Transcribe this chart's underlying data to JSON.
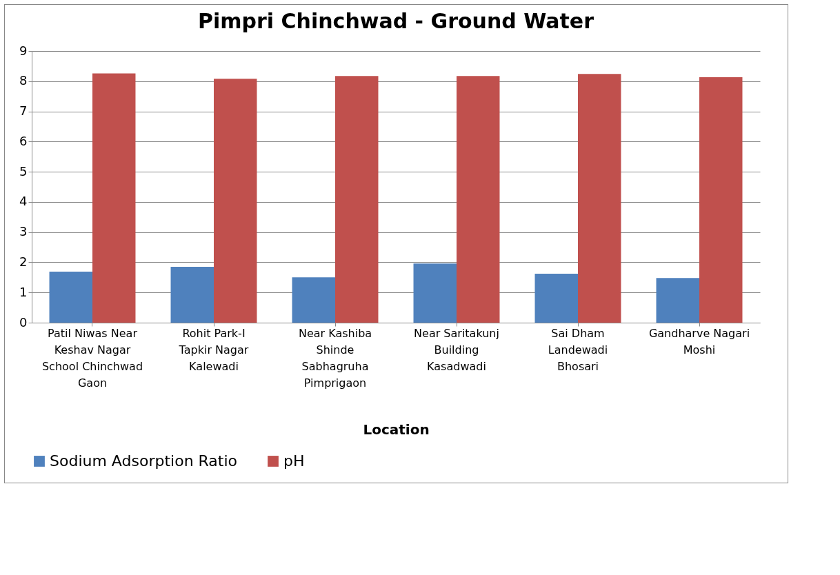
{
  "chart_data": {
    "type": "bar",
    "title": "Pimpri Chinchwad - Ground Water",
    "xlabel": "Location",
    "categories": [
      "Patil Niwas Near Keshav Nagar School Chinchwad Gaon",
      "Rohit Park-I Tapkir Nagar Kalewadi",
      "Near Kashiba Shinde Sabhagruha Pimprigaon",
      "Near Saritakunj Building Kasadwadi",
      "Sai Dham Landewadi Bhosari",
      "Gandharve Nagari Moshi"
    ],
    "series": [
      {
        "name": "Sodium Adsorption Ratio",
        "color": "#4f81bd",
        "values": [
          1.69,
          1.85,
          1.5,
          1.96,
          1.62,
          1.48
        ]
      },
      {
        "name": "pH",
        "color": "#c0504d",
        "values": [
          8.26,
          8.08,
          8.17,
          8.17,
          8.24,
          8.13
        ]
      }
    ],
    "ylim": [
      0,
      9
    ],
    "yticks": [
      0,
      1,
      2,
      3,
      4,
      5,
      6,
      7,
      8,
      9
    ],
    "grid": "y",
    "legend": "bottom"
  }
}
